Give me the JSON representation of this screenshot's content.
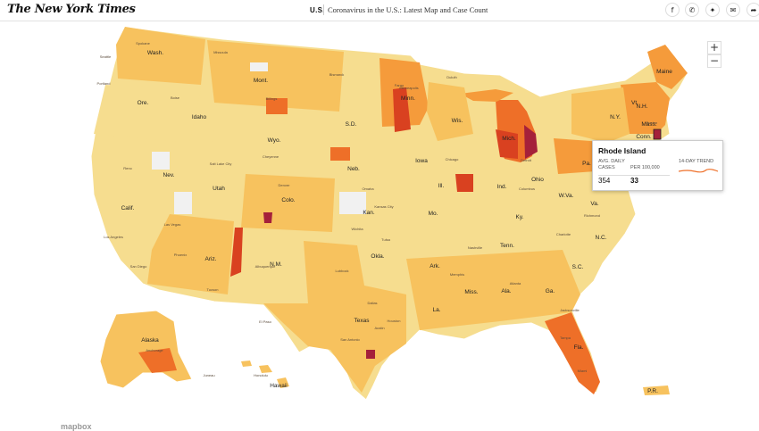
{
  "header": {
    "logo": "The New York Times",
    "section": "U.S.",
    "headline": "Coronavirus in the U.S.: Latest Map and Case Count",
    "share_icons": [
      "facebook-icon",
      "whatsapp-icon",
      "twitter-icon",
      "email-icon",
      "share-arrow-icon"
    ]
  },
  "zoom": {
    "in": "+",
    "out": "−"
  },
  "tooltip": {
    "state": "Rhode Island",
    "avg_daily_label": "AVG. DAILY CASES",
    "per_100k_label": "PER 100,000",
    "trend_label": "14-DAY TREND",
    "avg_daily_value": "354",
    "per_100k_value": "33"
  },
  "colors": {
    "lowest": "#f6dd8f",
    "low": "#f7c25e",
    "medium": "#f59b3b",
    "high": "#ee6f28",
    "higher": "#d94120",
    "highest": "#a5203a",
    "no_data": "#f1f1f1"
  },
  "state_labels": [
    "Wash.",
    "Mont.",
    "Minn.",
    "Maine",
    "Ore.",
    "Idaho",
    "Wyo.",
    "S.D.",
    "Wis.",
    "Mich.",
    "N.Y.",
    "Vt.",
    "N.H.",
    "Mass.",
    "Conn.",
    "Neb.",
    "Iowa",
    "Nev.",
    "Utah",
    "Colo.",
    "Kan.",
    "Ill.",
    "Ind.",
    "Ohio",
    "Pa.",
    "W.Va.",
    "Va.",
    "Calif.",
    "Mo.",
    "Ky.",
    "N.C.",
    "Ariz.",
    "N.M.",
    "Okla.",
    "Ark.",
    "Tenn.",
    "S.C.",
    "Miss.",
    "Ala.",
    "Ga.",
    "La.",
    "Texas",
    "Fla.",
    "Alaska",
    "Hawaii",
    "P.R."
  ],
  "city_labels": [
    "Spokane",
    "Seattle",
    "Portland",
    "Boise",
    "Missoula",
    "Billings",
    "Bismarck",
    "Fargo",
    "Duluth",
    "Minneapolis",
    "Salt Lake City",
    "Reno",
    "Las Vegas",
    "Los Angeles",
    "San Diego",
    "Phoenix",
    "Tucson",
    "Albuquerque",
    "Denver",
    "Cheyenne",
    "Omaha",
    "Kansas City",
    "Wichita",
    "Tulsa",
    "Dallas",
    "Houston",
    "San Antonio",
    "Austin",
    "Chicago",
    "Detroit",
    "Columbus",
    "Nashville",
    "Memphis",
    "Atlanta",
    "Miami",
    "Tampa",
    "Charlotte",
    "Richmond",
    "Philadelphia",
    "Boston",
    "Jacksonville",
    "Lubbock",
    "El Paso",
    "Anchorage",
    "Juneau",
    "Honolulu"
  ],
  "attribution": "mapbox"
}
